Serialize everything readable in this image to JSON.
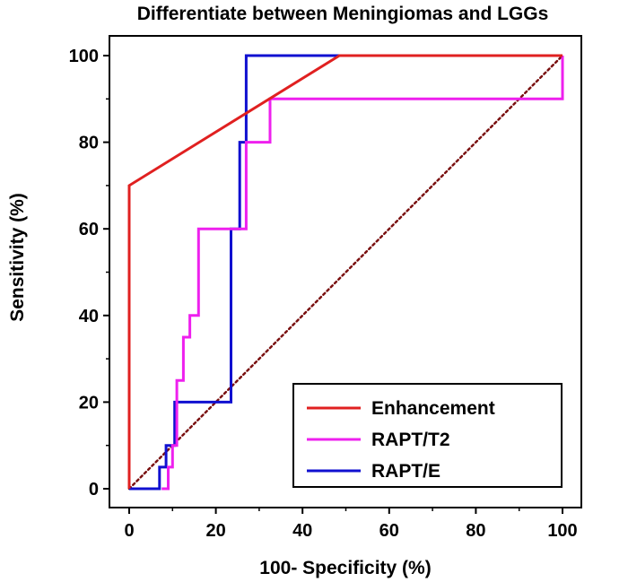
{
  "chart_data": {
    "type": "line",
    "title": "Differentiate between Meningiomas and LGGs",
    "xlabel": "100- Specificity (%)",
    "ylabel": "Sensitivity (%)",
    "xlim": [
      0,
      100
    ],
    "ylim": [
      0,
      100
    ],
    "xticks": [
      0,
      20,
      40,
      60,
      80,
      100
    ],
    "yticks": [
      0,
      20,
      40,
      60,
      80,
      100
    ],
    "grid": false,
    "legend": "bottom-right",
    "reference_line": {
      "x": [
        0,
        100
      ],
      "y": [
        0,
        100
      ],
      "color": "#7a1010",
      "style": "dotted"
    },
    "series": [
      {
        "name": "Enhancement",
        "color": "#e02020",
        "x": [
          0,
          0,
          48.5,
          100
        ],
        "y": [
          0,
          70,
          100,
          100
        ]
      },
      {
        "name": "RAPT/T2",
        "color": "#ee20ee",
        "x": [
          7.5,
          9,
          9,
          10,
          10,
          11,
          11,
          12.5,
          12.5,
          14,
          14,
          16,
          16,
          27,
          27,
          32.5,
          32.5,
          100,
          100
        ],
        "y": [
          0,
          0,
          5,
          5,
          10,
          10,
          25,
          25,
          35,
          35,
          40,
          40,
          60,
          60,
          80,
          80,
          90,
          90,
          100
        ]
      },
      {
        "name": "RAPT/E",
        "color": "#1010d0",
        "x": [
          0,
          7,
          7,
          8.5,
          8.5,
          10.5,
          10.5,
          23.5,
          23.5,
          25.5,
          25.5,
          27,
          27,
          100
        ],
        "y": [
          0,
          0,
          5,
          5,
          10,
          10,
          20,
          20,
          60,
          60,
          80,
          80,
          100,
          100
        ]
      }
    ]
  }
}
